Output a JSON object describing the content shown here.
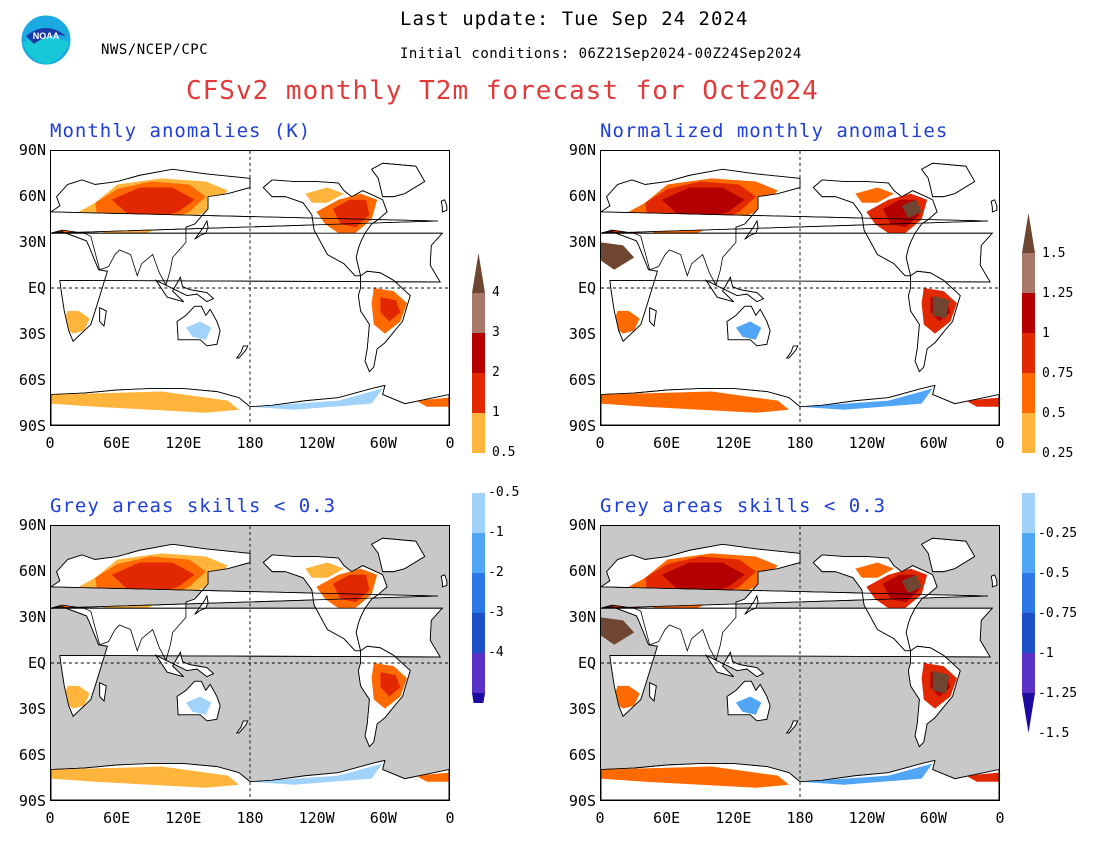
{
  "header": {
    "agency": "NWS/NCEP/CPC",
    "last_update": "Last update: Tue Sep 24 2024",
    "initial_conditions": "Initial conditions: 06Z21Sep2024-00Z24Sep2024",
    "title": "CFSv2 monthly T2m forecast for Oct2024",
    "logo_text": "NOAA"
  },
  "panels": [
    {
      "id": "top-left",
      "title": "Monthly anomalies (K)",
      "grey": false
    },
    {
      "id": "top-right",
      "title": "Normalized monthly anomalies",
      "grey": false
    },
    {
      "id": "bottom-left",
      "title": "Grey areas skills < 0.3",
      "grey": true
    },
    {
      "id": "bottom-right",
      "title": "Grey areas skills < 0.3",
      "grey": true
    }
  ],
  "axes": {
    "lat_labels": [
      "90N",
      "60N",
      "30N",
      "EQ",
      "30S",
      "60S",
      "90S"
    ],
    "lon_labels": [
      "0",
      "60E",
      "120E",
      "180",
      "120W",
      "60W",
      "0"
    ]
  },
  "colorbars": {
    "left": {
      "labels": [
        "4",
        "3",
        "2",
        "1",
        "0.5",
        "-0.5",
        "-1",
        "-2",
        "-3",
        "-4"
      ]
    },
    "right": {
      "labels": [
        "1.5",
        "1.25",
        "1",
        "0.75",
        "0.5",
        "0.25",
        "-0.25",
        "-0.5",
        "-0.75",
        "-1",
        "-1.25",
        "-1.5"
      ]
    }
  },
  "colors": {
    "c_brown": "#6e4632",
    "c_tan": "#a8786a",
    "c_darkred": "#b40000",
    "c_red": "#e22800",
    "c_orange": "#ff6a00",
    "c_yellow": "#ffb43c",
    "c_white": "#ffffff",
    "c_lightblue": "#a0d2fa",
    "c_blue1": "#50a5f5",
    "c_blue2": "#2d78e6",
    "c_blue3": "#1e50c8",
    "c_purple": "#5a32c8",
    "c_navy": "#1e0aa0",
    "grey": "#c8c8c8",
    "title_red": "#e23a3a",
    "title_blue": "#1e3fd8"
  }
}
